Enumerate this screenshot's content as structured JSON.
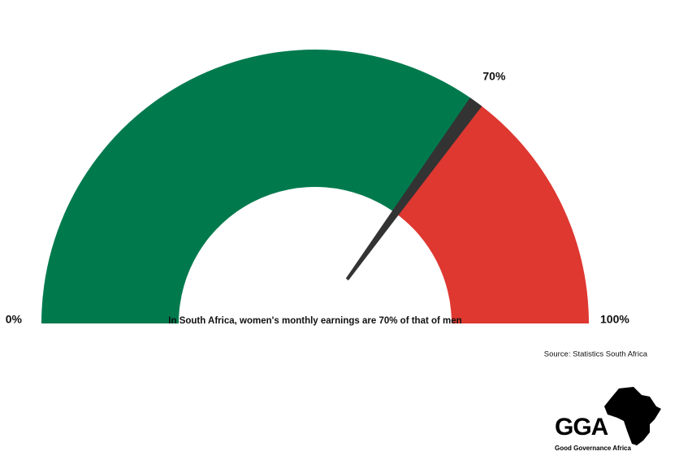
{
  "chart_data": {
    "type": "gauge",
    "values": [
      70
    ],
    "value_labels": [
      "70%"
    ],
    "range": [
      0,
      100
    ],
    "ticks": [
      {
        "value": 0,
        "label": "0%"
      },
      {
        "value": 100,
        "label": "100%"
      }
    ],
    "colors": {
      "filled": "#007a4d",
      "remaining": "#de3831",
      "needle": "#333333"
    },
    "annotation": "In South Africa, women's monthly earnings are 70% of that of men",
    "source": "Source: Statistics South Africa"
  },
  "logo": {
    "text": "GGA",
    "caption": "Good Governance Africa"
  }
}
